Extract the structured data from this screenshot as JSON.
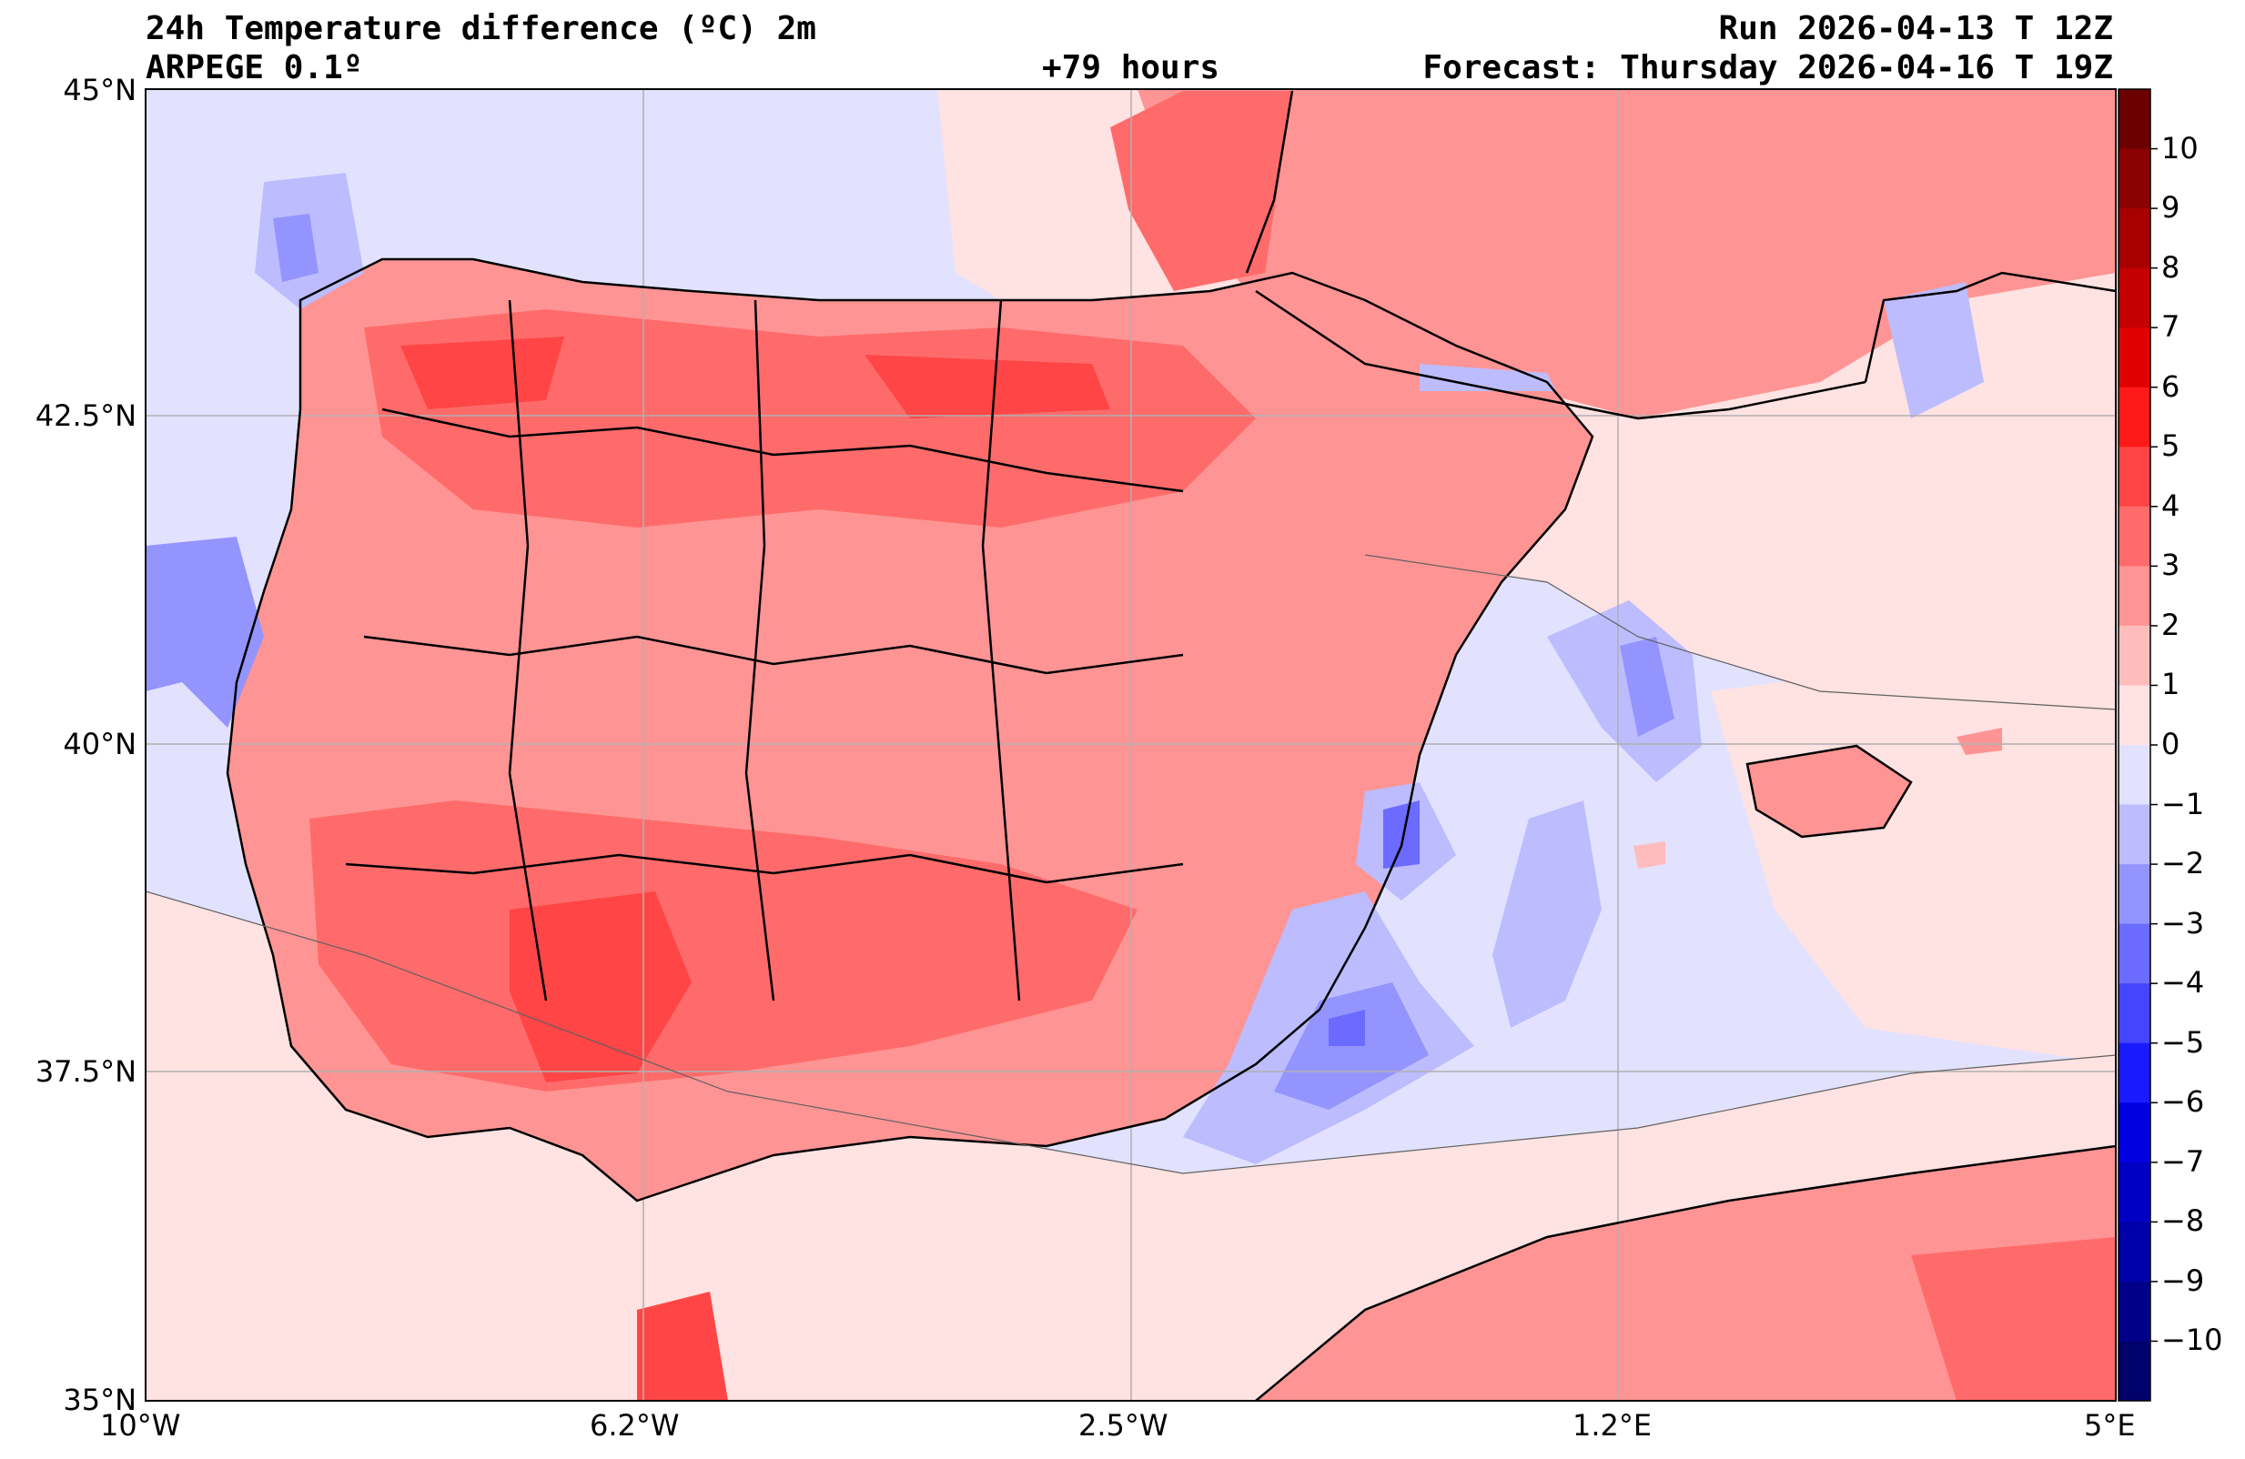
{
  "header": {
    "title": "24h Temperature difference (ºC) 2m",
    "model": "ARPEGE 0.1º",
    "lead": "+79 hours",
    "run": "Run 2026-04-13 T 12Z",
    "forecast": "Forecast: Thursday 2026-04-16 T 19Z"
  },
  "map": {
    "region": "Iberian Peninsula",
    "lat_labels": [
      "45°N",
      "42.5°N",
      "40°N",
      "37.5°N",
      "35°N"
    ],
    "lon_labels": [
      "10°W",
      "6.2°W",
      "2.5°W",
      "1.2°E",
      "5°E"
    ],
    "grid": true
  },
  "colorbar": {
    "labels": [
      "10",
      "9",
      "8",
      "7",
      "6",
      "5",
      "4",
      "3",
      "2",
      "1",
      "0",
      "−1",
      "−2",
      "−3",
      "−4",
      "−5",
      "−6",
      "−7",
      "−8",
      "−9",
      "−10"
    ],
    "colors": [
      "#6b0000",
      "#8b0000",
      "#a80000",
      "#c40000",
      "#e00000",
      "#ff1a1a",
      "#ff4545",
      "#ff6b6b",
      "#ff9494",
      "#ffbcbc",
      "#ffe2e2",
      "#e2e2ff",
      "#bcbcff",
      "#9494ff",
      "#6b6bff",
      "#4545ff",
      "#1a1aff",
      "#0000e0",
      "#0000c4",
      "#0000a8",
      "#00008b",
      "#00006b"
    ]
  }
}
